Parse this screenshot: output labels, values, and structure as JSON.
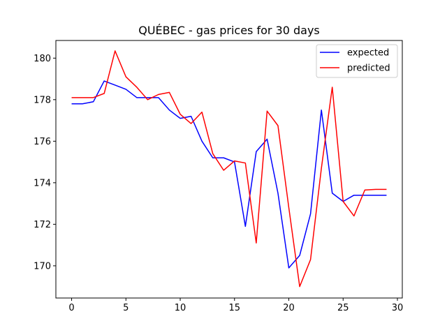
{
  "chart_data": {
    "type": "line",
    "title": "QUÉBEC - gas prices for 30 days",
    "xlabel": "",
    "ylabel": "",
    "xlim": [
      -1.45,
      30.45
    ],
    "ylim": [
      168.45,
      180.85
    ],
    "xticks": [
      0,
      5,
      10,
      15,
      20,
      25,
      30
    ],
    "yticks": [
      170,
      172,
      174,
      176,
      178,
      180
    ],
    "grid": false,
    "legend_position": "upper right",
    "x": [
      0,
      1,
      2,
      3,
      4,
      5,
      6,
      7,
      8,
      9,
      10,
      11,
      12,
      13,
      14,
      15,
      16,
      17,
      18,
      19,
      20,
      21,
      22,
      23,
      24,
      25,
      26,
      27,
      28,
      29
    ],
    "series": [
      {
        "name": "expected",
        "color": "#0000ff",
        "values": [
          177.8,
          177.8,
          177.9,
          178.9,
          178.7,
          178.5,
          178.1,
          178.1,
          178.1,
          177.5,
          177.1,
          177.2,
          176.0,
          175.2,
          175.2,
          175.0,
          171.9,
          175.5,
          176.1,
          173.5,
          169.9,
          170.5,
          172.5,
          177.5,
          173.5,
          173.1,
          173.4,
          173.4,
          173.4,
          173.4
        ]
      },
      {
        "name": "predicted",
        "color": "#ff0000",
        "values": [
          178.1,
          178.1,
          178.1,
          178.3,
          180.35,
          179.1,
          178.6,
          178.0,
          178.25,
          178.35,
          177.3,
          176.85,
          177.4,
          175.4,
          174.6,
          175.05,
          174.95,
          171.1,
          177.45,
          176.75,
          172.8,
          169.0,
          170.3,
          174.7,
          178.6,
          173.1,
          172.4,
          173.65,
          173.68,
          173.68
        ]
      }
    ]
  }
}
